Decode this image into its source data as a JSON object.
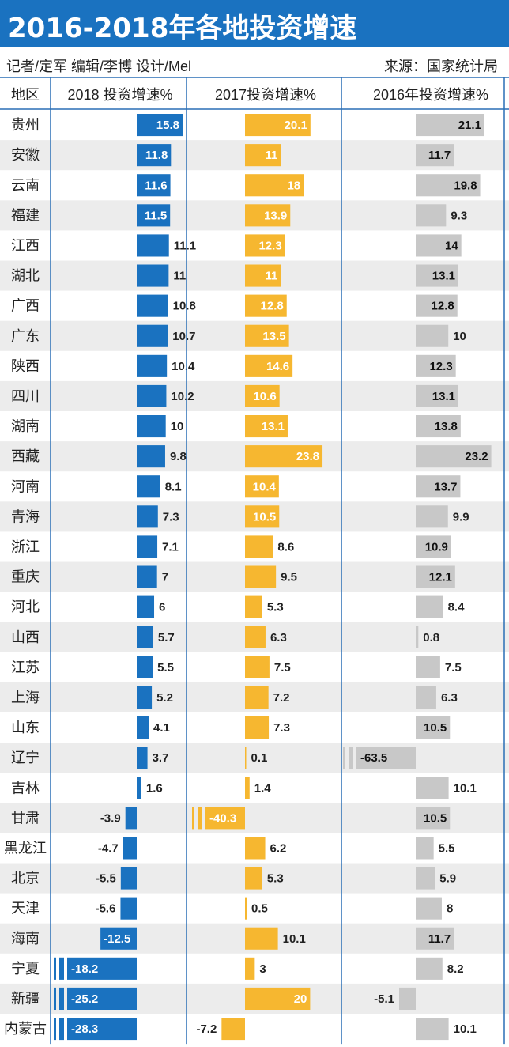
{
  "title": "2016-2018年各地投资增速",
  "credits": {
    "left": "记者/定军 编辑/李博 设计/Mel",
    "right": "来源：国家统计局"
  },
  "colors": {
    "title_bg": "#1a72c0",
    "s2018": "#1a72c0",
    "s2017": "#f6b730",
    "s2016": "#c8c8c8",
    "stripe": "#ececec",
    "divider": "#2a6fb5"
  },
  "chart_data": {
    "type": "bar",
    "orientation": "horizontal",
    "title": "2016-2018年各地投资增速",
    "category_header": "地区",
    "categories": [
      "贵州",
      "安徽",
      "云南",
      "福建",
      "江西",
      "湖北",
      "广西",
      "广东",
      "陕西",
      "四川",
      "湖南",
      "西藏",
      "河南",
      "青海",
      "浙江",
      "重庆",
      "河北",
      "山西",
      "江苏",
      "上海",
      "山东",
      "辽宁",
      "吉林",
      "甘肃",
      "黑龙江",
      "北京",
      "天津",
      "海南",
      "宁夏",
      "新疆",
      "内蒙古"
    ],
    "series": [
      {
        "name": "2018 投资增速%",
        "values": [
          15.8,
          11.8,
          11.6,
          11.5,
          11.1,
          11,
          10.8,
          10.7,
          10.4,
          10.2,
          10,
          9.8,
          8.1,
          7.3,
          7.1,
          7,
          6,
          5.7,
          5.5,
          5.2,
          4.1,
          3.7,
          1.6,
          -3.9,
          -4.7,
          -5.5,
          -5.6,
          -12.5,
          -18.2,
          -25.2,
          -28.3
        ]
      },
      {
        "name": "2017投资增速%",
        "values": [
          20.1,
          11,
          18,
          13.9,
          12.3,
          11,
          12.8,
          13.5,
          14.6,
          10.6,
          13.1,
          23.8,
          10.4,
          10.5,
          8.6,
          9.5,
          5.3,
          6.3,
          7.5,
          7.2,
          7.3,
          0.1,
          1.4,
          -40.3,
          6.2,
          5.3,
          0.5,
          10.1,
          3,
          20,
          -7.2
        ]
      },
      {
        "name": "2016年投资增速%",
        "values": [
          21.1,
          11.7,
          19.8,
          9.3,
          14,
          13.1,
          12.8,
          10,
          12.3,
          13.1,
          13.8,
          23.2,
          13.7,
          9.9,
          10.9,
          12.1,
          8.4,
          0.8,
          7.5,
          6.3,
          10.5,
          -63.5,
          10.1,
          10.5,
          5.5,
          5.9,
          8,
          11.7,
          8.2,
          -5.1,
          10.1
        ]
      }
    ],
    "legend": "column headers"
  }
}
